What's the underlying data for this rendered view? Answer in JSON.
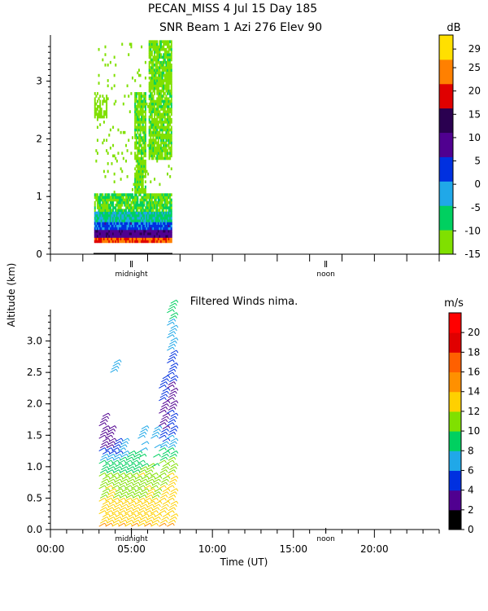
{
  "header": {
    "title": "PECAN_MISS    4 Jul 15 Day 185",
    "subtitle": "SNR Beam 1 Azi 276 Elev 90"
  },
  "shared": {
    "ylabel": "Altitude (km)",
    "xlabel": "Time (UT)",
    "xtick_labels": [
      "00:00",
      "05:00",
      "10:00",
      "15:00",
      "20:00"
    ],
    "xtick_values": [
      0,
      5,
      10,
      15,
      20
    ],
    "xlim": [
      0,
      24
    ],
    "markers": [
      {
        "label": "midnight",
        "hour": 5
      },
      {
        "label": "noon",
        "hour": 17
      }
    ]
  },
  "chart_data": [
    {
      "type": "heatmap",
      "title": "",
      "ylim": [
        0,
        3.8
      ],
      "yticks": [
        0,
        1,
        2,
        3
      ],
      "colorbar": {
        "unit": "dB",
        "ticks": [
          29,
          25,
          20,
          15,
          10,
          5,
          0,
          -5,
          -10,
          -15
        ],
        "min": -15,
        "max": 32,
        "colors": [
          "#80e000",
          "#00d060",
          "#20a8e8",
          "#0030e0",
          "#500090",
          "#2a0050",
          "#e00000",
          "#ff8000",
          "#ffe000"
        ]
      },
      "data_extent": {
        "t_start": 2.7,
        "t_end": 7.5
      },
      "layers": [
        {
          "name": "snr_low",
          "value": -12,
          "t": [
            2.7,
            7.5
          ],
          "alt": [
            0.2,
            3.7
          ]
        },
        {
          "name": "snr_mid",
          "value": -5,
          "t": [
            2.7,
            7.5
          ],
          "alt": [
            0.2,
            1.0
          ]
        },
        {
          "name": "snr_high",
          "value": 5,
          "t": [
            2.7,
            7.5
          ],
          "alt": [
            0.2,
            0.5
          ]
        },
        {
          "name": "snr_max",
          "value": 20,
          "t": [
            2.7,
            7.5
          ],
          "alt": [
            0.2,
            0.3
          ]
        }
      ]
    },
    {
      "type": "scatter",
      "title": "Filtered Winds nima.",
      "ylim": [
        0,
        3.5
      ],
      "yticks": [
        0.0,
        0.5,
        1.0,
        1.5,
        2.0,
        2.5,
        3.0
      ],
      "ytick_labels": [
        "0.0",
        "0.5",
        "1.0",
        "1.5",
        "2.0",
        "2.5",
        "3.0"
      ],
      "colorbar": {
        "unit": "m/s",
        "ticks": [
          20,
          18,
          16,
          14,
          12,
          10,
          8,
          6,
          4,
          2,
          0
        ],
        "min": 0,
        "max": 22,
        "colors": [
          "#000000",
          "#500090",
          "#0030e0",
          "#20a8e8",
          "#00d060",
          "#80e000",
          "#ffd000",
          "#ff9000",
          "#ff6000",
          "#e00000",
          "#ff0000"
        ]
      },
      "profiles": [
        {
          "t": 3.3,
          "alt": [
            0.05,
            0.25,
            0.45,
            0.65,
            0.85,
            1.05,
            1.25,
            1.45,
            1.65
          ],
          "speed": [
            14,
            13,
            12,
            11,
            10,
            8,
            4,
            3,
            3
          ]
        },
        {
          "t": 3.7,
          "alt": [
            0.05,
            0.25,
            0.45,
            0.65,
            0.85,
            1.05,
            1.25,
            1.45
          ],
          "speed": [
            14,
            13,
            12,
            12,
            10,
            9,
            4,
            3
          ]
        },
        {
          "t": 4.1,
          "alt": [
            0.05,
            0.25,
            0.45,
            0.65,
            0.85,
            1.05,
            1.25
          ],
          "speed": [
            13,
            13,
            12,
            11,
            10,
            8,
            4
          ]
        },
        {
          "t": 4.5,
          "alt": [
            0.05,
            0.25,
            0.45,
            0.65,
            0.85,
            1.05,
            1.25
          ],
          "speed": [
            14,
            13,
            12,
            11,
            10,
            9,
            6
          ]
        },
        {
          "t": 4.9,
          "alt": [
            0.05,
            0.25,
            0.45,
            0.65,
            0.85,
            1.05
          ],
          "speed": [
            13,
            12,
            12,
            11,
            10,
            9
          ]
        },
        {
          "t": 5.3,
          "alt": [
            0.05,
            0.25,
            0.45,
            0.65,
            0.85,
            1.05
          ],
          "speed": [
            14,
            13,
            12,
            11,
            10,
            8
          ]
        },
        {
          "t": 5.7,
          "alt": [
            0.05,
            0.25,
            0.45,
            0.65,
            0.85,
            1.05,
            1.45
          ],
          "speed": [
            13,
            13,
            12,
            11,
            12,
            9,
            6
          ]
        },
        {
          "t": 6.1,
          "alt": [
            0.05,
            0.25,
            0.45,
            0.65,
            0.85
          ],
          "speed": [
            14,
            13,
            12,
            12,
            11
          ]
        },
        {
          "t": 6.5,
          "alt": [
            0.05,
            0.25,
            0.45,
            0.65,
            0.85,
            1.45
          ],
          "speed": [
            13,
            12,
            12,
            11,
            10,
            7
          ]
        },
        {
          "t": 7.0,
          "alt": [
            0.05,
            0.25,
            0.45,
            0.65,
            0.85,
            1.05,
            1.25,
            1.45,
            1.65,
            1.85,
            2.05,
            2.25
          ],
          "speed": [
            14,
            13,
            12,
            12,
            11,
            10,
            8,
            5,
            3,
            3,
            4,
            5
          ]
        },
        {
          "t": 7.5,
          "alt": [
            0.05,
            0.25,
            0.45,
            0.65,
            0.85,
            1.05,
            1.25,
            1.45,
            1.65,
            1.85,
            2.05,
            2.25,
            2.45,
            2.65,
            2.85,
            3.05,
            3.25,
            3.45
          ],
          "speed": [
            14,
            13,
            12,
            12,
            12,
            11,
            8,
            6,
            5,
            4,
            3,
            3,
            5,
            5,
            6,
            6,
            7,
            9
          ]
        },
        {
          "t": 4.0,
          "alt": [
            2.5
          ],
          "speed": [
            6
          ]
        }
      ]
    }
  ]
}
